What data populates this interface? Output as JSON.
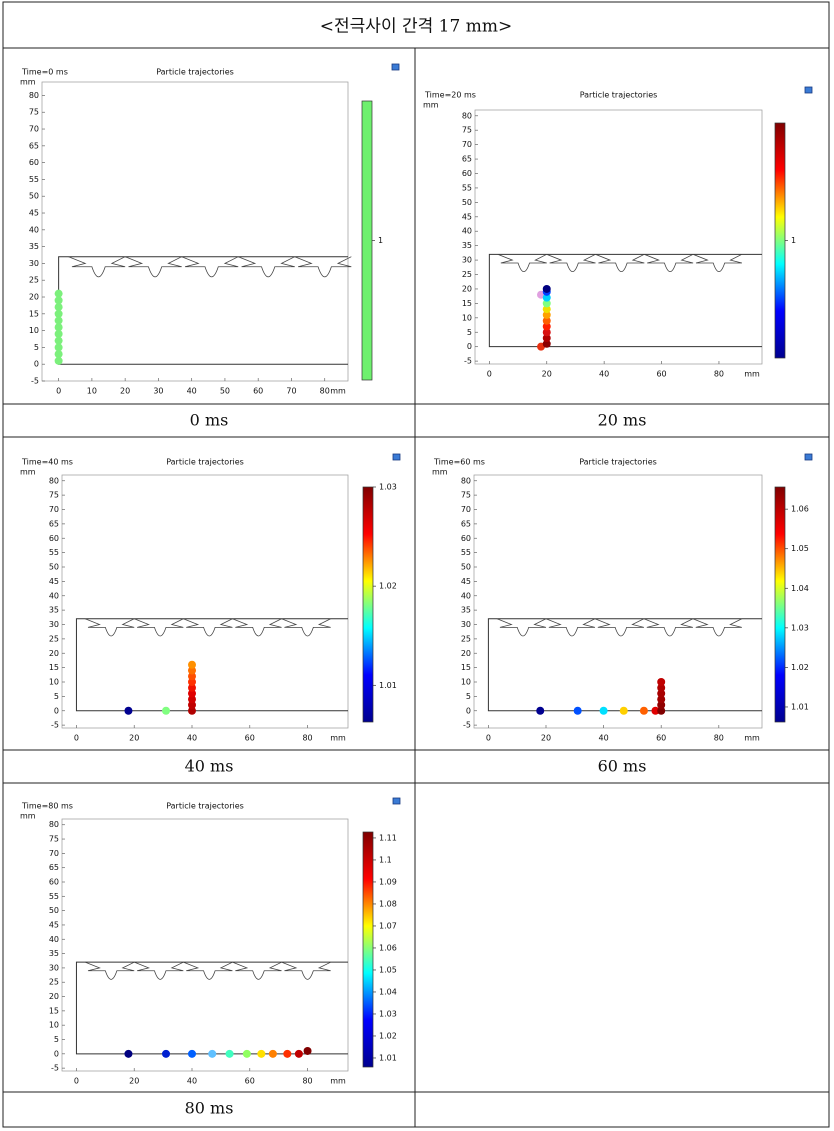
{
  "header": {
    "title": "<전극사이 간격 17 mm>"
  },
  "panels": [
    {
      "caption": "0 ms",
      "time_label": "Time=0 ms",
      "title": "Particle trajectories",
      "y_unit": "mm",
      "x_unit": "mm",
      "xlim": [
        -5,
        87
      ],
      "ylim": [
        -5,
        84
      ],
      "xticks": [
        0,
        10,
        20,
        30,
        40,
        50,
        60,
        70,
        80
      ],
      "yticks": [
        -5,
        0,
        5,
        10,
        15,
        20,
        25,
        30,
        35,
        40,
        45,
        50,
        55,
        60,
        65,
        70,
        75,
        80
      ],
      "clim": [
        0.99,
        1.01
      ],
      "cticks": [
        1
      ],
      "colormap": [
        "#6ef06e",
        "#6ef06e"
      ],
      "particles": {
        "x": [
          0,
          0,
          0,
          0,
          0,
          0,
          0,
          0,
          0,
          0,
          0
        ],
        "y": [
          1,
          3,
          5,
          7,
          9,
          11,
          13,
          15,
          17,
          19,
          21
        ],
        "colors": [
          "#7cf07c",
          "#7cf07c",
          "#7cf07c",
          "#7cf07c",
          "#7cf07c",
          "#7cf07c",
          "#7cf07c",
          "#7cf07c",
          "#7cf07c",
          "#7cf07c",
          "#7cf07c"
        ]
      }
    },
    {
      "caption": "20 ms",
      "time_label": "Time=20 ms",
      "title": "Particle trajectories",
      "y_unit": "mm",
      "x_unit": "mm",
      "xlim": [
        -5,
        95
      ],
      "ylim": [
        -6,
        82
      ],
      "xticks": [
        0,
        20,
        40,
        60,
        80
      ],
      "yticks": [
        -5,
        0,
        5,
        10,
        15,
        20,
        25,
        30,
        35,
        40,
        45,
        50,
        55,
        60,
        65,
        70,
        75,
        80
      ],
      "clim": [
        0.99,
        1.01
      ],
      "cticks": [
        1
      ],
      "colormap": [
        "#00008f",
        "#0000ff",
        "#00ffff",
        "#ffff00",
        "#ff0000",
        "#800000"
      ],
      "particles": {
        "x": [
          18,
          18,
          20,
          20,
          20,
          20,
          20,
          20,
          20,
          20,
          20,
          20,
          20
        ],
        "y": [
          0,
          18,
          1,
          3,
          5,
          7,
          9,
          11,
          13,
          15,
          17,
          19,
          20
        ],
        "colors": [
          "#e83010",
          "#e0a0e0",
          "#8b0000",
          "#b00000",
          "#d81010",
          "#ff2000",
          "#ff6000",
          "#ffa000",
          "#f0e000",
          "#80ff80",
          "#00d0ff",
          "#0040ff",
          "#000080"
        ]
      }
    },
    {
      "caption": "40 ms",
      "time_label": "Time=40 ms",
      "title": "Particle trajectories",
      "y_unit": "mm",
      "x_unit": "mm",
      "xlim": [
        -5,
        94
      ],
      "ylim": [
        -6,
        82
      ],
      "xticks": [
        0,
        20,
        40,
        60,
        80
      ],
      "yticks": [
        -5,
        0,
        5,
        10,
        15,
        20,
        25,
        30,
        35,
        40,
        45,
        50,
        55,
        60,
        65,
        70,
        75,
        80
      ],
      "clim": [
        1.0063,
        1.03
      ],
      "cticks": [
        1.01,
        1.02,
        1.03
      ],
      "colormap": [
        "#00008f",
        "#0000ff",
        "#00ffff",
        "#ffff00",
        "#ff0000",
        "#800000"
      ],
      "particles": {
        "x": [
          18,
          31,
          40,
          40,
          40,
          40,
          40,
          40,
          40,
          40,
          40
        ],
        "y": [
          0,
          0,
          0,
          2,
          4,
          6,
          8,
          10,
          12,
          14,
          16
        ],
        "colors": [
          "#000090",
          "#80ff80",
          "#b00000",
          "#c00000",
          "#d00000",
          "#e00000",
          "#f01000",
          "#ff3000",
          "#ff5000",
          "#ff7000",
          "#ff9000"
        ]
      }
    },
    {
      "caption": "60 ms",
      "time_label": "Time=60 ms",
      "title": "Particle trajectories",
      "y_unit": "mm",
      "x_unit": "mm",
      "xlim": [
        -5,
        95
      ],
      "ylim": [
        -6,
        82
      ],
      "xticks": [
        0,
        20,
        40,
        60,
        80
      ],
      "yticks": [
        -5,
        0,
        5,
        10,
        15,
        20,
        25,
        30,
        35,
        40,
        45,
        50,
        55,
        60,
        65,
        70,
        75,
        80
      ],
      "clim": [
        1.0062,
        1.0656
      ],
      "cticks": [
        1.01,
        1.02,
        1.03,
        1.04,
        1.05,
        1.06
      ],
      "colormap": [
        "#00008f",
        "#0000ff",
        "#00ffff",
        "#ffff00",
        "#ff0000",
        "#800000"
      ],
      "particles": {
        "x": [
          18,
          31,
          40,
          47,
          54,
          58,
          60,
          60,
          60,
          60,
          60,
          60
        ],
        "y": [
          0,
          0,
          0,
          0,
          0,
          0,
          0,
          2,
          4,
          6,
          8,
          10
        ],
        "colors": [
          "#000090",
          "#0050ff",
          "#00e0ff",
          "#ffd000",
          "#ff6000",
          "#e00000",
          "#800000",
          "#900000",
          "#a00000",
          "#a80000",
          "#b00000",
          "#c00000"
        ]
      }
    },
    {
      "caption": "80 ms",
      "time_label": "Time=80 ms",
      "title": "Particle trajectories",
      "y_unit": "mm",
      "x_unit": "mm",
      "xlim": [
        -5,
        94
      ],
      "ylim": [
        -6,
        82
      ],
      "xticks": [
        0,
        20,
        40,
        60,
        80
      ],
      "yticks": [
        -5,
        0,
        5,
        10,
        15,
        20,
        25,
        30,
        35,
        40,
        45,
        50,
        55,
        60,
        65,
        70,
        75,
        80
      ],
      "clim": [
        1.0059,
        1.1127
      ],
      "cticks": [
        1.01,
        1.02,
        1.03,
        1.04,
        1.05,
        1.06,
        1.07,
        1.08,
        1.09,
        1.1,
        1.11
      ],
      "colormap": [
        "#00008f",
        "#0000ff",
        "#00ffff",
        "#ffff00",
        "#ff0000",
        "#800000"
      ],
      "particles": {
        "x": [
          18,
          31,
          40,
          47,
          53,
          59,
          64,
          68,
          73,
          77,
          80
        ],
        "y": [
          0,
          0,
          0,
          0,
          0,
          0,
          0,
          0,
          0,
          0,
          1
        ],
        "colors": [
          "#000080",
          "#0020d0",
          "#0060ff",
          "#60c0ff",
          "#40ffc0",
          "#90ff60",
          "#ffe000",
          "#ff8000",
          "#ff3000",
          "#c00000",
          "#800000"
        ]
      }
    }
  ]
}
